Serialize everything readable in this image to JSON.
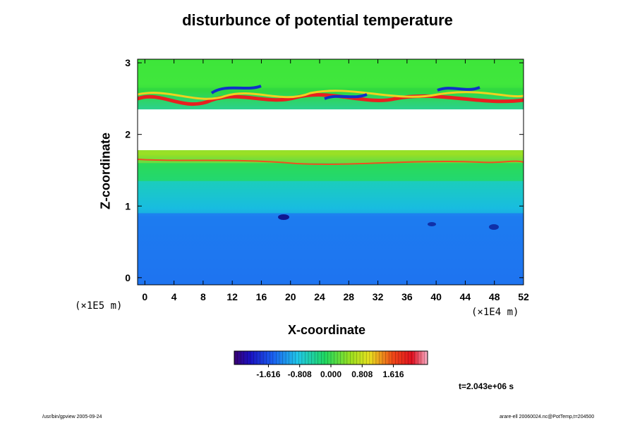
{
  "chart_data": {
    "type": "heatmap",
    "title": "disturbunce of potential temperature",
    "xlabel": "X-coordinate",
    "ylabel": "Z-coordinate",
    "x_unit": "(×1E4 m)",
    "y_unit": "(×1E5 m)",
    "x_ticks": [
      0,
      4,
      8,
      12,
      16,
      20,
      24,
      28,
      32,
      36,
      40,
      44,
      48,
      52
    ],
    "y_ticks": [
      0,
      1,
      2,
      3
    ],
    "xlim": [
      -1,
      52
    ],
    "ylim": [
      -0.1,
      3.05
    ],
    "colorbar": {
      "ticks": [
        -1.616,
        -0.808,
        0.0,
        0.808,
        1.616
      ],
      "tick_labels": [
        "-1.616",
        "-0.808",
        "0.000",
        "0.808",
        "1.616"
      ],
      "range": [
        -2.5,
        2.5
      ],
      "colormap": "rainbow (purple-blue-cyan-green-yellow-red-pink)"
    },
    "bands": [
      {
        "z_from": -0.1,
        "z_to": 0.9,
        "approx_value": -1.0,
        "color": "#1e78f0"
      },
      {
        "z_from": 0.9,
        "z_to": 1.35,
        "approx_value": -0.4,
        "color": "#17c8d8"
      },
      {
        "z_from": 1.35,
        "z_to": 1.6,
        "approx_value": 0.0,
        "color": "#22dc50"
      },
      {
        "z_from": 1.6,
        "z_to": 1.78,
        "approx_value": 0.4,
        "color": "#9ae024"
      },
      {
        "z_from": 1.78,
        "z_to": 2.35,
        "approx_value": "out of range",
        "color": "#ffffff"
      },
      {
        "z_from": 2.35,
        "z_to": 2.65,
        "approx_value": "mixed",
        "color": "#30d840"
      },
      {
        "z_from": 2.65,
        "z_to": 3.05,
        "approx_value": 0.1,
        "color": "#3ee63a"
      }
    ],
    "time_label": "t=2.043e+06 s"
  },
  "footer": {
    "left": "/usr/bin/gpview 2005-09-24",
    "right": "arare-ell 20060024.nc@PotTemp,t=204500"
  }
}
